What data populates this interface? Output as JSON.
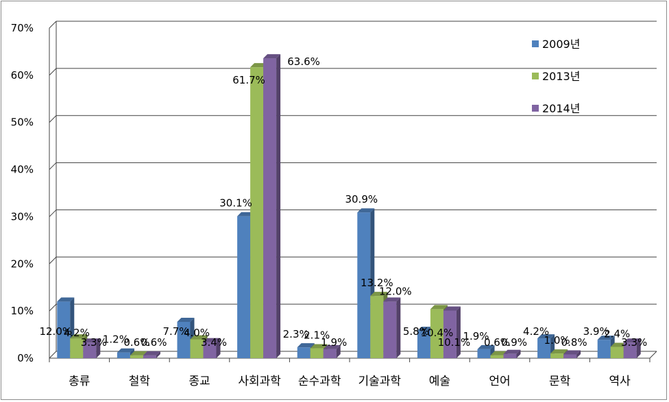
{
  "chart_data": {
    "type": "bar",
    "title": "",
    "xlabel": "",
    "ylabel": "",
    "ylim": [
      0,
      70
    ],
    "y_ticks": [
      "0%",
      "10%",
      "20%",
      "30%",
      "40%",
      "50%",
      "60%",
      "70%"
    ],
    "y_tick_values": [
      0,
      10,
      20,
      30,
      40,
      50,
      60,
      70
    ],
    "grid": true,
    "legend_position": "top-right",
    "categories": [
      "총류",
      "철학",
      "종교",
      "사회과학",
      "순수과학",
      "기술과학",
      "예술",
      "언어",
      "문학",
      "역사"
    ],
    "series": [
      {
        "name": "2009년",
        "color": "#4f81bd",
        "values": [
          12.0,
          1.2,
          7.7,
          30.1,
          2.3,
          30.9,
          5.8,
          1.9,
          4.2,
          3.9
        ],
        "labels": [
          "12.0%",
          "1.2%",
          "7.7%",
          "30.1%",
          "2.3%",
          "30.9%",
          "5.8%",
          "1.9%",
          "4.2%",
          "3.9%"
        ]
      },
      {
        "name": "2013년",
        "color": "#9bbb59",
        "values": [
          4.2,
          0.6,
          4.0,
          61.7,
          2.1,
          13.2,
          10.4,
          0.6,
          1.0,
          2.4
        ],
        "labels": [
          "4.2%",
          "0.6%",
          "4.0%",
          "61.7%",
          "2.1%",
          "13.2%",
          "10.4%",
          "0.6%",
          "1.0%",
          "2.4%"
        ]
      },
      {
        "name": "2014년",
        "color": "#8064a2",
        "values": [
          3.3,
          0.6,
          3.4,
          63.6,
          1.9,
          12.0,
          10.1,
          0.9,
          0.8,
          3.3
        ],
        "labels": [
          "3.3%",
          "0.6%",
          "3.4%",
          "63.6%",
          "1.9%",
          "12.0%",
          "10.1%",
          "0.9%",
          "0.8%",
          "3.3%"
        ]
      }
    ]
  }
}
